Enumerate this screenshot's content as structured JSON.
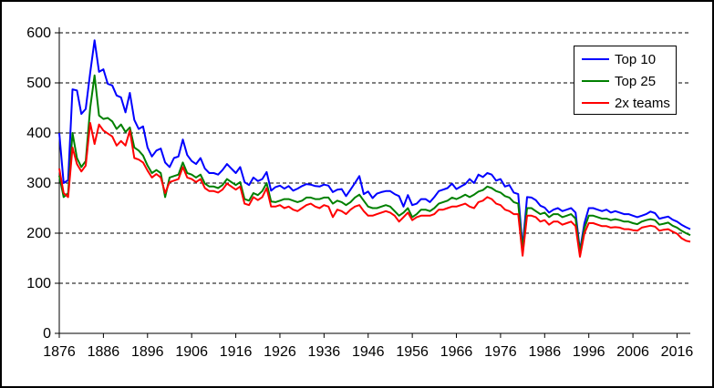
{
  "chart_data": {
    "type": "line",
    "title": "",
    "xlabel": "",
    "ylabel": "",
    "ylim": [
      0,
      600
    ],
    "yticks": [
      0,
      100,
      200,
      300,
      400,
      500,
      600
    ],
    "xticks": [
      1876,
      1886,
      1896,
      1906,
      1916,
      1926,
      1936,
      1946,
      1956,
      1966,
      1976,
      1986,
      1996,
      2006,
      2016
    ],
    "grid": "horizontal-dashed",
    "legend_position": "top-right",
    "colors": {
      "background": "#ffffff",
      "axis": "#000000",
      "grid": "#000000",
      "border": "#000000"
    },
    "x": [
      1876,
      1877,
      1878,
      1879,
      1880,
      1881,
      1882,
      1883,
      1884,
      1885,
      1886,
      1887,
      1888,
      1889,
      1890,
      1891,
      1892,
      1893,
      1894,
      1895,
      1896,
      1897,
      1898,
      1899,
      1900,
      1901,
      1902,
      1903,
      1904,
      1905,
      1906,
      1907,
      1908,
      1909,
      1910,
      1911,
      1912,
      1913,
      1914,
      1915,
      1916,
      1917,
      1918,
      1919,
      1920,
      1921,
      1922,
      1923,
      1924,
      1925,
      1926,
      1927,
      1928,
      1929,
      1930,
      1931,
      1932,
      1933,
      1934,
      1935,
      1936,
      1937,
      1938,
      1939,
      1940,
      1941,
      1942,
      1943,
      1944,
      1945,
      1946,
      1947,
      1948,
      1949,
      1950,
      1951,
      1952,
      1953,
      1954,
      1955,
      1956,
      1957,
      1958,
      1959,
      1960,
      1961,
      1962,
      1963,
      1964,
      1965,
      1966,
      1967,
      1968,
      1969,
      1970,
      1971,
      1972,
      1973,
      1974,
      1975,
      1976,
      1977,
      1978,
      1979,
      1980,
      1981,
      1982,
      1983,
      1984,
      1985,
      1986,
      1987,
      1988,
      1989,
      1990,
      1991,
      1992,
      1993,
      1994,
      1995,
      1996,
      1997,
      1998,
      1999,
      2000,
      2001,
      2002,
      2003,
      2004,
      2005,
      2006,
      2007,
      2008,
      2009,
      2010,
      2011,
      2012,
      2013,
      2014,
      2015,
      2016,
      2017,
      2018,
      2019
    ],
    "series": [
      {
        "name": "Top 10",
        "color": "#0000ff",
        "values": [
          400,
          300,
          306,
          487,
          485,
          438,
          448,
          520,
          585,
          522,
          527,
          498,
          495,
          475,
          471,
          441,
          480,
          426,
          408,
          413,
          371,
          353,
          365,
          369,
          341,
          332,
          350,
          353,
          387,
          356,
          344,
          338,
          350,
          329,
          320,
          320,
          317,
          326,
          338,
          329,
          320,
          332,
          302,
          296,
          311,
          304,
          308,
          322,
          285,
          292,
          295,
          289,
          294,
          285,
          289,
          294,
          298,
          297,
          294,
          293,
          297,
          295,
          282,
          287,
          288,
          274,
          287,
          300,
          314,
          278,
          283,
          270,
          279,
          282,
          284,
          284,
          278,
          274,
          253,
          276,
          256,
          259,
          268,
          268,
          262,
          272,
          284,
          287,
          290,
          299,
          288,
          293,
          298,
          308,
          300,
          317,
          312,
          320,
          317,
          305,
          308,
          293,
          296,
          281,
          278,
          171,
          272,
          271,
          266,
          255,
          251,
          241,
          247,
          250,
          244,
          247,
          250,
          241,
          165,
          220,
          250,
          250,
          247,
          244,
          247,
          241,
          244,
          241,
          238,
          238,
          235,
          232,
          235,
          238,
          243,
          240,
          229,
          231,
          233,
          227,
          223,
          217,
          212,
          208
        ]
      },
      {
        "name": "Top 25",
        "color": "#008000",
        "values": [
          315,
          272,
          280,
          400,
          350,
          332,
          344,
          450,
          515,
          435,
          428,
          430,
          423,
          408,
          417,
          402,
          411,
          371,
          365,
          355,
          335,
          320,
          326,
          320,
          272,
          311,
          314,
          317,
          341,
          320,
          317,
          311,
          317,
          299,
          293,
          293,
          290,
          296,
          308,
          302,
          296,
          302,
          268,
          265,
          280,
          276,
          284,
          300,
          263,
          262,
          265,
          268,
          268,
          265,
          262,
          265,
          271,
          271,
          268,
          268,
          271,
          271,
          259,
          265,
          262,
          256,
          262,
          271,
          277,
          265,
          253,
          250,
          250,
          253,
          256,
          253,
          244,
          235,
          241,
          250,
          232,
          238,
          247,
          247,
          244,
          250,
          259,
          262,
          265,
          271,
          268,
          272,
          277,
          272,
          277,
          283,
          286,
          293,
          290,
          284,
          281,
          274,
          271,
          262,
          259,
          166,
          250,
          250,
          244,
          238,
          241,
          232,
          238,
          238,
          232,
          235,
          238,
          229,
          162,
          210,
          235,
          235,
          232,
          229,
          229,
          226,
          228,
          226,
          223,
          223,
          220,
          218,
          223,
          226,
          228,
          226,
          217,
          219,
          221,
          215,
          211,
          205,
          200,
          196
        ]
      },
      {
        "name": "2x teams",
        "color": "#ff0000",
        "values": [
          329,
          280,
          272,
          371,
          338,
          323,
          335,
          420,
          378,
          417,
          405,
          399,
          393,
          375,
          384,
          375,
          405,
          350,
          347,
          341,
          325,
          311,
          318,
          311,
          280,
          302,
          305,
          308,
          332,
          311,
          308,
          302,
          308,
          290,
          284,
          284,
          281,
          287,
          299,
          293,
          287,
          293,
          259,
          256,
          272,
          266,
          272,
          290,
          253,
          253,
          256,
          250,
          253,
          247,
          244,
          250,
          256,
          259,
          253,
          250,
          256,
          253,
          232,
          247,
          244,
          238,
          247,
          253,
          256,
          244,
          235,
          235,
          238,
          241,
          244,
          241,
          235,
          223,
          232,
          241,
          226,
          232,
          235,
          235,
          235,
          238,
          247,
          247,
          250,
          253,
          253,
          256,
          259,
          253,
          250,
          262,
          265,
          272,
          268,
          259,
          256,
          247,
          244,
          238,
          238,
          155,
          235,
          235,
          232,
          223,
          226,
          217,
          223,
          223,
          217,
          220,
          223,
          214,
          153,
          200,
          220,
          220,
          217,
          214,
          214,
          211,
          212,
          211,
          208,
          208,
          206,
          205,
          211,
          213,
          215,
          213,
          205,
          207,
          208,
          203,
          199,
          190,
          185,
          183
        ]
      }
    ]
  }
}
